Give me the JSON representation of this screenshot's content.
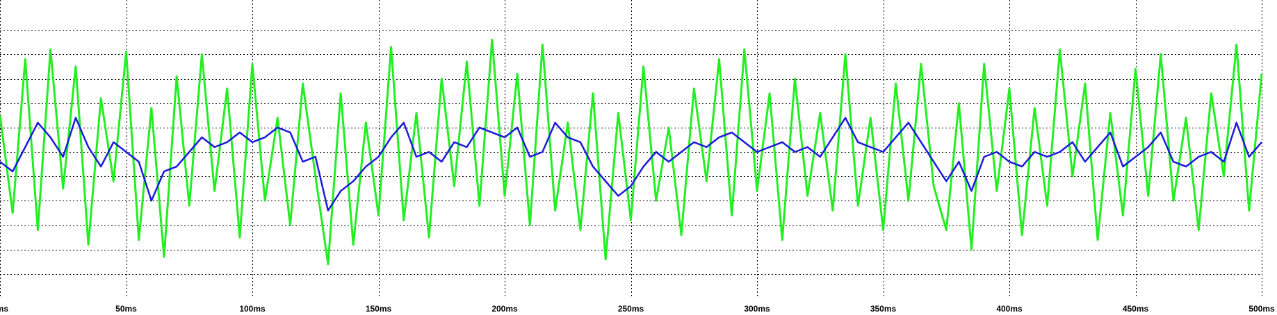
{
  "chart_data": {
    "type": "line",
    "title": "",
    "xlabel": "",
    "ylabel": "",
    "xlim": [
      0,
      500
    ],
    "ylim": [
      -6,
      6
    ],
    "grid": true,
    "legend": "none",
    "x_ticks": [
      "ms",
      "50ms",
      "100ms",
      "150ms",
      "200ms",
      "250ms",
      "300ms",
      "350ms",
      "400ms",
      "450ms",
      "500ms"
    ],
    "x_tick_values": [
      0,
      50,
      100,
      150,
      200,
      250,
      300,
      350,
      400,
      450,
      500
    ],
    "y_grid_values": [
      -5,
      -4,
      -3,
      -2,
      -1,
      0,
      1,
      2,
      3,
      4,
      5
    ],
    "series": [
      {
        "color": "#22ee22",
        "x": [
          0,
          5,
          10,
          15,
          20,
          25,
          30,
          35,
          40,
          45,
          50,
          55,
          60,
          65,
          70,
          75,
          80,
          85,
          90,
          95,
          100,
          105,
          110,
          115,
          120,
          125,
          130,
          135,
          140,
          145,
          150,
          155,
          160,
          165,
          170,
          175,
          180,
          185,
          190,
          195,
          200,
          205,
          210,
          215,
          220,
          225,
          230,
          235,
          240,
          245,
          250,
          255,
          260,
          265,
          270,
          275,
          280,
          285,
          290,
          295,
          300,
          305,
          310,
          315,
          320,
          325,
          330,
          335,
          340,
          345,
          350,
          355,
          360,
          365,
          370,
          375,
          380,
          385,
          390,
          395,
          400,
          405,
          410,
          415,
          420,
          425,
          430,
          435,
          440,
          445,
          450,
          455,
          460,
          465,
          470,
          475,
          480,
          485,
          490,
          495,
          500
        ],
        "values": [
          1.5,
          -2.5,
          3.8,
          -3.2,
          4.2,
          -1.5,
          3.5,
          -3.8,
          2.2,
          -1.2,
          4.1,
          -3.6,
          1.8,
          -4.3,
          3.1,
          -2.2,
          4.0,
          -1.6,
          2.6,
          -3.5,
          3.6,
          -2.0,
          1.4,
          -3.0,
          2.8,
          -1.0,
          -4.6,
          2.4,
          -3.8,
          1.2,
          -2.6,
          4.3,
          -2.8,
          1.6,
          -3.5,
          3.0,
          -1.4,
          3.7,
          -2.2,
          4.6,
          -1.8,
          3.2,
          -3.0,
          4.4,
          -2.4,
          1.2,
          -3.2,
          2.4,
          -4.4,
          1.6,
          -2.8,
          3.5,
          -2.0,
          1.0,
          -3.4,
          2.6,
          -1.2,
          3.8,
          -2.6,
          4.2,
          -1.6,
          2.4,
          -3.6,
          3.0,
          -1.8,
          1.6,
          -2.4,
          4.0,
          -2.2,
          1.4,
          -3.2,
          2.8,
          -2.0,
          3.6,
          -1.4,
          -3.2,
          2.0,
          -4.0,
          3.6,
          -1.6,
          2.6,
          -3.4,
          1.8,
          -2.2,
          4.2,
          -1.0,
          2.8,
          -3.6,
          1.6,
          -2.6,
          3.4,
          -1.8,
          4.0,
          -2.0,
          1.4,
          -3.2,
          2.4,
          -1.0,
          4.4,
          -2.4,
          3.2
        ]
      },
      {
        "color": "#1a1adc",
        "x": [
          0,
          5,
          10,
          15,
          20,
          25,
          30,
          35,
          40,
          45,
          50,
          55,
          60,
          65,
          70,
          75,
          80,
          85,
          90,
          95,
          100,
          105,
          110,
          115,
          120,
          125,
          130,
          135,
          140,
          145,
          150,
          155,
          160,
          165,
          170,
          175,
          180,
          185,
          190,
          195,
          200,
          205,
          210,
          215,
          220,
          225,
          230,
          235,
          240,
          245,
          250,
          255,
          260,
          265,
          270,
          275,
          280,
          285,
          290,
          295,
          300,
          305,
          310,
          315,
          320,
          325,
          330,
          335,
          340,
          345,
          350,
          355,
          360,
          365,
          370,
          375,
          380,
          385,
          390,
          395,
          400,
          405,
          410,
          415,
          420,
          425,
          430,
          435,
          440,
          445,
          450,
          455,
          460,
          465,
          470,
          475,
          480,
          485,
          490,
          495,
          500
        ],
        "values": [
          -0.4,
          -0.8,
          0.2,
          1.2,
          0.6,
          -0.2,
          1.4,
          0.2,
          -0.6,
          0.4,
          0.0,
          -0.4,
          -2.0,
          -0.8,
          -0.6,
          0.0,
          0.6,
          0.2,
          0.4,
          0.8,
          0.4,
          0.6,
          1.0,
          0.8,
          -0.4,
          -0.2,
          -2.4,
          -1.6,
          -1.2,
          -0.6,
          -0.2,
          0.6,
          1.2,
          -0.2,
          0.0,
          -0.4,
          0.4,
          0.2,
          1.0,
          0.8,
          0.6,
          1.0,
          -0.2,
          0.0,
          1.2,
          0.6,
          0.4,
          -0.6,
          -1.2,
          -1.8,
          -1.4,
          -0.6,
          0.0,
          -0.4,
          0.0,
          0.4,
          0.2,
          0.6,
          0.8,
          0.4,
          0.0,
          0.2,
          0.4,
          0.0,
          0.2,
          -0.2,
          0.6,
          1.4,
          0.4,
          0.2,
          0.0,
          0.6,
          1.2,
          0.4,
          -0.4,
          -1.2,
          -0.4,
          -1.6,
          -0.2,
          0.0,
          -0.4,
          -0.6,
          0.0,
          -0.2,
          0.0,
          0.4,
          -0.4,
          0.2,
          0.8,
          -0.6,
          -0.2,
          0.2,
          0.8,
          -0.4,
          -0.6,
          -0.2,
          0.0,
          -0.4,
          1.2,
          -0.2,
          0.4
        ]
      }
    ]
  }
}
